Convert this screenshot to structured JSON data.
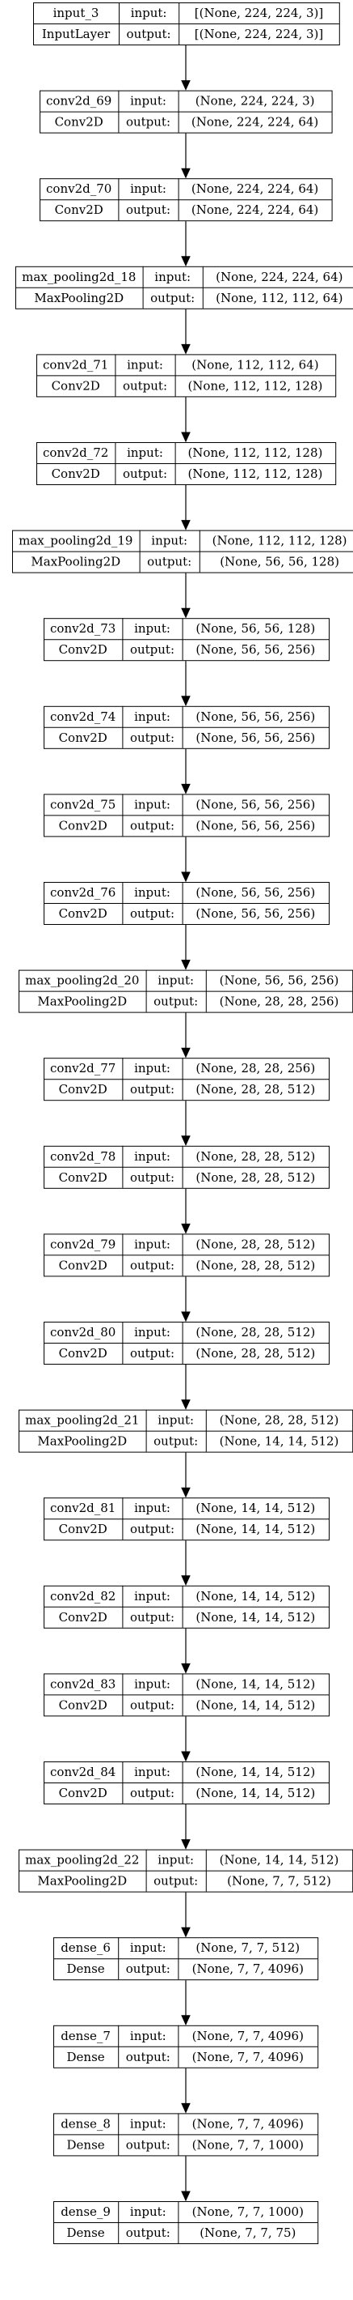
{
  "layers": [
    {
      "name": "input_3",
      "type": "InputLayer",
      "input_label": "input:",
      "output_label": "output:",
      "input": "[(None, 224, 224, 3)]",
      "output": "[(None, 224, 224, 3)]"
    },
    {
      "name": "conv2d_69",
      "type": "Conv2D",
      "input_label": "input:",
      "output_label": "output:",
      "input": "(None, 224, 224, 3)",
      "output": "(None, 224, 224, 64)"
    },
    {
      "name": "conv2d_70",
      "type": "Conv2D",
      "input_label": "input:",
      "output_label": "output:",
      "input": "(None, 224, 224, 64)",
      "output": "(None, 224, 224, 64)"
    },
    {
      "name": "max_pooling2d_18",
      "type": "MaxPooling2D",
      "input_label": "input:",
      "output_label": "output:",
      "input": "(None, 224, 224, 64)",
      "output": "(None, 112, 112, 64)"
    },
    {
      "name": "conv2d_71",
      "type": "Conv2D",
      "input_label": "input:",
      "output_label": "output:",
      "input": "(None, 112, 112, 64)",
      "output": "(None, 112, 112, 128)"
    },
    {
      "name": "conv2d_72",
      "type": "Conv2D",
      "input_label": "input:",
      "output_label": "output:",
      "input": "(None, 112, 112, 128)",
      "output": "(None, 112, 112, 128)"
    },
    {
      "name": "max_pooling2d_19",
      "type": "MaxPooling2D",
      "input_label": "input:",
      "output_label": "output:",
      "input": "(None, 112, 112, 128)",
      "output": "(None, 56, 56, 128)"
    },
    {
      "name": "conv2d_73",
      "type": "Conv2D",
      "input_label": "input:",
      "output_label": "output:",
      "input": "(None, 56, 56, 128)",
      "output": "(None, 56, 56, 256)"
    },
    {
      "name": "conv2d_74",
      "type": "Conv2D",
      "input_label": "input:",
      "output_label": "output:",
      "input": "(None, 56, 56, 256)",
      "output": "(None, 56, 56, 256)"
    },
    {
      "name": "conv2d_75",
      "type": "Conv2D",
      "input_label": "input:",
      "output_label": "output:",
      "input": "(None, 56, 56, 256)",
      "output": "(None, 56, 56, 256)"
    },
    {
      "name": "conv2d_76",
      "type": "Conv2D",
      "input_label": "input:",
      "output_label": "output:",
      "input": "(None, 56, 56, 256)",
      "output": "(None, 56, 56, 256)"
    },
    {
      "name": "max_pooling2d_20",
      "type": "MaxPooling2D",
      "input_label": "input:",
      "output_label": "output:",
      "input": "(None, 56, 56, 256)",
      "output": "(None, 28, 28, 256)"
    },
    {
      "name": "conv2d_77",
      "type": "Conv2D",
      "input_label": "input:",
      "output_label": "output:",
      "input": "(None, 28, 28, 256)",
      "output": "(None, 28, 28, 512)"
    },
    {
      "name": "conv2d_78",
      "type": "Conv2D",
      "input_label": "input:",
      "output_label": "output:",
      "input": "(None, 28, 28, 512)",
      "output": "(None, 28, 28, 512)"
    },
    {
      "name": "conv2d_79",
      "type": "Conv2D",
      "input_label": "input:",
      "output_label": "output:",
      "input": "(None, 28, 28, 512)",
      "output": "(None, 28, 28, 512)"
    },
    {
      "name": "conv2d_80",
      "type": "Conv2D",
      "input_label": "input:",
      "output_label": "output:",
      "input": "(None, 28, 28, 512)",
      "output": "(None, 28, 28, 512)"
    },
    {
      "name": "max_pooling2d_21",
      "type": "MaxPooling2D",
      "input_label": "input:",
      "output_label": "output:",
      "input": "(None, 28, 28, 512)",
      "output": "(None, 14, 14, 512)"
    },
    {
      "name": "conv2d_81",
      "type": "Conv2D",
      "input_label": "input:",
      "output_label": "output:",
      "input": "(None, 14, 14, 512)",
      "output": "(None, 14, 14, 512)"
    },
    {
      "name": "conv2d_82",
      "type": "Conv2D",
      "input_label": "input:",
      "output_label": "output:",
      "input": "(None, 14, 14, 512)",
      "output": "(None, 14, 14, 512)"
    },
    {
      "name": "conv2d_83",
      "type": "Conv2D",
      "input_label": "input:",
      "output_label": "output:",
      "input": "(None, 14, 14, 512)",
      "output": "(None, 14, 14, 512)"
    },
    {
      "name": "conv2d_84",
      "type": "Conv2D",
      "input_label": "input:",
      "output_label": "output:",
      "input": "(None, 14, 14, 512)",
      "output": "(None, 14, 14, 512)"
    },
    {
      "name": "max_pooling2d_22",
      "type": "MaxPooling2D",
      "input_label": "input:",
      "output_label": "output:",
      "input": "(None, 14, 14, 512)",
      "output": "(None, 7, 7, 512)"
    },
    {
      "name": "dense_6",
      "type": "Dense",
      "input_label": "input:",
      "output_label": "output:",
      "input": "(None, 7, 7, 512)",
      "output": "(None, 7, 7, 4096)"
    },
    {
      "name": "dense_7",
      "type": "Dense",
      "input_label": "input:",
      "output_label": "output:",
      "input": "(None, 7, 7, 4096)",
      "output": "(None, 7, 7, 4096)"
    },
    {
      "name": "dense_8",
      "type": "Dense",
      "input_label": "input:",
      "output_label": "output:",
      "input": "(None, 7, 7, 4096)",
      "output": "(None, 7, 7, 1000)"
    },
    {
      "name": "dense_9",
      "type": "Dense",
      "input_label": "input:",
      "output_label": "output:",
      "input": "(None, 7, 7, 1000)",
      "output": "(None, 7, 7, 75)"
    }
  ],
  "colors": {
    "stroke": "#000000",
    "background": "#ffffff",
    "text": "#000000"
  }
}
